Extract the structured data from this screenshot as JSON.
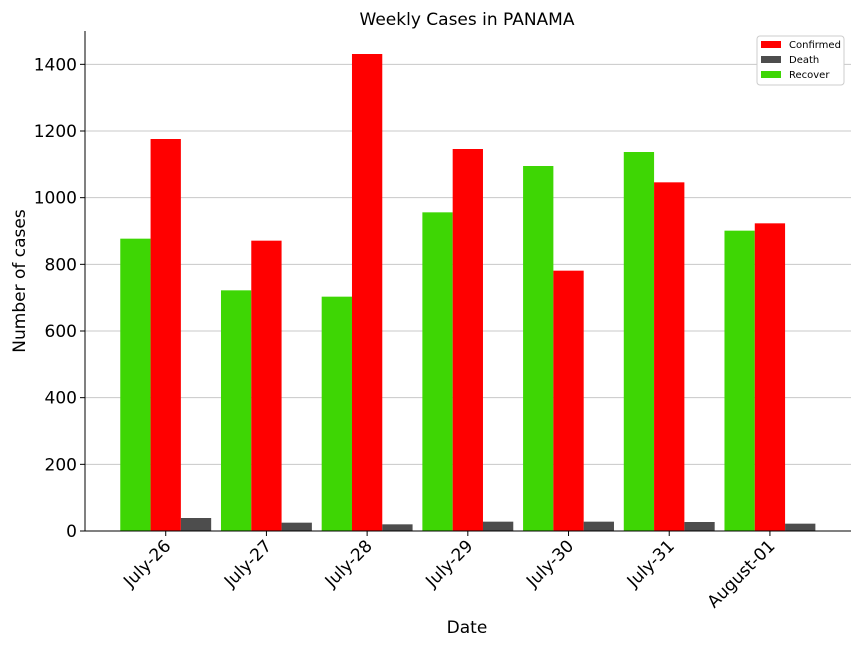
{
  "chart_data": {
    "type": "bar",
    "title": "Weekly Cases in PANAMA",
    "xlabel": "Date",
    "ylabel": "Number of cases",
    "categories": [
      "July-26",
      "July-27",
      "July-28",
      "July-29",
      "July-30",
      "July-31",
      "August-01"
    ],
    "series": [
      {
        "name": "Recover",
        "color": "#3ed604",
        "values": [
          877,
          722,
          703,
          956,
          1095,
          1137,
          901
        ]
      },
      {
        "name": "Confirmed",
        "color": "#ff0000",
        "values": [
          1176,
          871,
          1431,
          1146,
          781,
          1046,
          923
        ]
      },
      {
        "name": "Death",
        "color": "#4d4d4d",
        "values": [
          39,
          25,
          20,
          28,
          28,
          27,
          22
        ]
      }
    ],
    "legend_order": [
      "Confirmed",
      "Death",
      "Recover"
    ],
    "ylim": [
      0,
      1500
    ],
    "yticks": [
      0,
      200,
      400,
      600,
      800,
      1000,
      1200,
      1400
    ],
    "grid": "horizontal",
    "legend_position": "top-right"
  }
}
